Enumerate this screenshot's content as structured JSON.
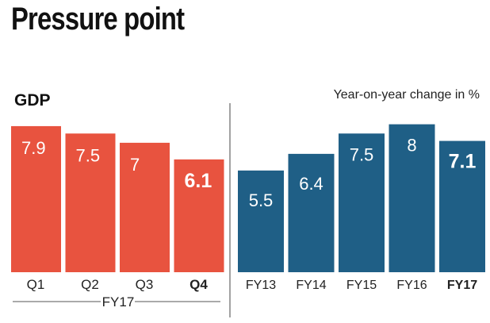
{
  "title": "Pressure point",
  "colors": {
    "left": "#e8533f",
    "right": "#1f5f86",
    "axis": "#555555",
    "text": "#222222"
  },
  "chart_data": [
    {
      "type": "bar",
      "title": "GDP",
      "categories": [
        "Q1",
        "Q2",
        "Q3",
        "Q4"
      ],
      "values": [
        7.9,
        7.5,
        7,
        6.1
      ],
      "value_labels": [
        "7.9",
        "7.5",
        "7",
        "6.1"
      ],
      "group_label": "FY17",
      "ylim": [
        0,
        8.5
      ],
      "highlight_index": 3
    },
    {
      "type": "bar",
      "subtitle": "Year-on-year change in %",
      "categories": [
        "FY13",
        "FY14",
        "FY15",
        "FY16",
        "FY17"
      ],
      "values": [
        5.5,
        6.4,
        7.5,
        8,
        7.1
      ],
      "value_labels": [
        "5.5",
        "6.4",
        "7.5",
        "8",
        "7.1"
      ],
      "ylim": [
        0,
        8.5
      ],
      "highlight_index": 4
    }
  ]
}
